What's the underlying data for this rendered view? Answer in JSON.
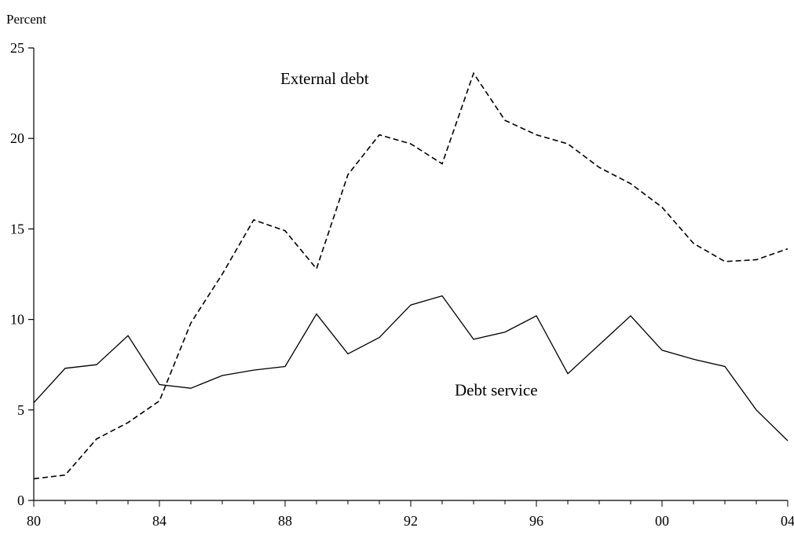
{
  "chart_data": {
    "type": "line",
    "title": "",
    "ylabel": "Percent",
    "xlabel": "",
    "x": [
      1980,
      1981,
      1982,
      1983,
      1984,
      1985,
      1986,
      1987,
      1988,
      1989,
      1990,
      1991,
      1992,
      1993,
      1994,
      1995,
      1996,
      1997,
      1998,
      1999,
      2000,
      2001,
      2002,
      2003,
      2004
    ],
    "x_tick_labels": [
      "80",
      "84",
      "88",
      "92",
      "96",
      "00",
      "04"
    ],
    "x_tick_values": [
      1980,
      1984,
      1988,
      1992,
      1996,
      2000,
      2004
    ],
    "y_tick_labels": [
      "0",
      "5",
      "10",
      "15",
      "20",
      "25"
    ],
    "y_tick_values": [
      0,
      5,
      10,
      15,
      20,
      25
    ],
    "ylim": [
      0,
      25
    ],
    "xlim": [
      1980,
      2004
    ],
    "grid": false,
    "legend": "none",
    "series": [
      {
        "name": "External debt",
        "style": "dashed",
        "color": "#000000",
        "values": [
          1.2,
          1.4,
          3.4,
          4.3,
          5.5,
          9.8,
          12.5,
          15.5,
          14.9,
          12.8,
          18.0,
          20.2,
          19.7,
          18.6,
          23.6,
          21.0,
          20.2,
          19.7,
          18.4,
          17.5,
          16.2,
          14.2,
          13.2,
          13.3,
          13.9
        ]
      },
      {
        "name": "Debt service",
        "style": "solid",
        "color": "#000000",
        "values": [
          5.4,
          7.3,
          7.5,
          9.1,
          6.4,
          6.2,
          6.9,
          7.2,
          7.4,
          10.3,
          8.1,
          9.0,
          10.8,
          11.3,
          8.9,
          9.3,
          10.2,
          7.0,
          8.6,
          10.2,
          8.3,
          7.8,
          7.4,
          5.0,
          3.3
        ]
      }
    ]
  }
}
